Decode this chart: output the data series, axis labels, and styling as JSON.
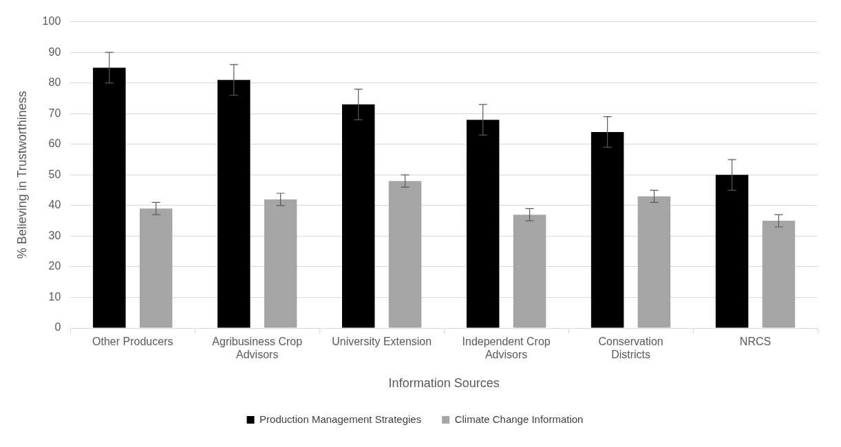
{
  "chart_data": {
    "type": "bar",
    "xlabel": "Information Sources",
    "ylabel": "% Believing in Trustworthiness",
    "categories": [
      "Other Producers",
      "Agribusiness Crop Advisors",
      "University Extension",
      "Independent Crop Advisors",
      "Conservation Districts",
      "NRCS"
    ],
    "series": [
      {
        "name": "Production Management Strategies",
        "color": "#000000",
        "values": [
          85,
          81,
          73,
          68,
          64,
          50
        ],
        "errors": [
          5,
          5,
          5,
          5,
          5,
          5
        ]
      },
      {
        "name": "Climate Change Information",
        "color": "#a5a5a5",
        "values": [
          39,
          42,
          48,
          37,
          43,
          35
        ],
        "errors": [
          2,
          2,
          2,
          2,
          2,
          2
        ]
      }
    ],
    "ylim": [
      0,
      100
    ],
    "yticks": [
      0,
      10,
      20,
      30,
      40,
      50,
      60,
      70,
      80,
      90,
      100
    ],
    "grid": "y",
    "legend": "bottom"
  }
}
